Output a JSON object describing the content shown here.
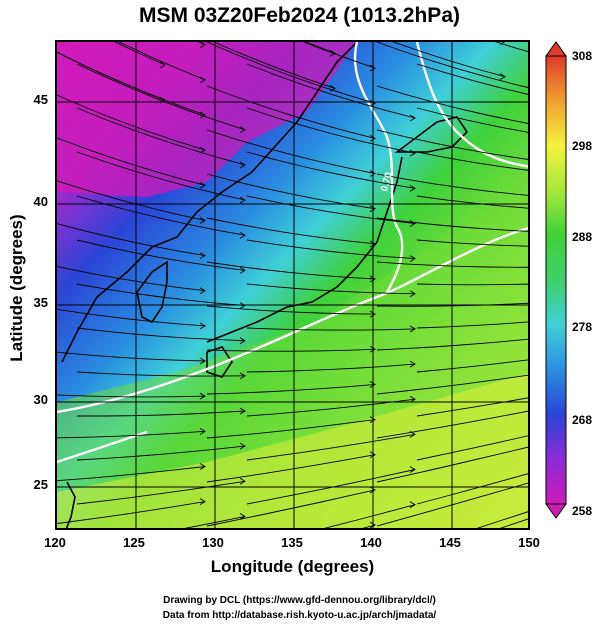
{
  "title": "MSM 03Z20Feb2024 (1013.2hPa)",
  "axes": {
    "xlabel": "Longitude (degrees)",
    "ylabel": "Latitude  (degrees)",
    "xticks": [
      "120",
      "125",
      "130",
      "135",
      "140",
      "145",
      "150"
    ],
    "yticks": [
      "25",
      "30",
      "35",
      "40",
      "45"
    ]
  },
  "colorbar": {
    "ticks": [
      "308",
      "298",
      "288",
      "278",
      "268",
      "258"
    ],
    "min": 258,
    "max": 308
  },
  "contour_label": "0.70",
  "credits": {
    "line1": "Drawing by DCL (https://www.gfd-dennou.org/library/dcl/)",
    "line2": "Data from http://database.rish.kyoto-u.ac.jp/arch/jmadata/"
  },
  "colors": {
    "magenta": "#d11ab8",
    "blue": "#2a45d6",
    "cyan": "#3fd0d8",
    "green": "#3fd13a",
    "yellow_green": "#b8ef3c",
    "yellow": "#f4f23d"
  }
}
